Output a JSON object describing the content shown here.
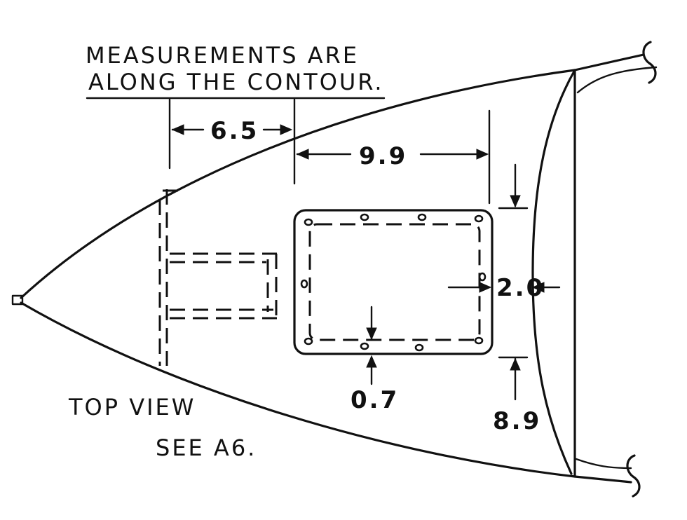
{
  "note": {
    "line1": "MEASUREMENTS ARE",
    "line2": "ALONG THE CONTOUR."
  },
  "dimensions": {
    "d1": "6.5",
    "d2": "9.9",
    "d3": "2.0",
    "d4": "0.7",
    "d5": "8.9"
  },
  "view_label": {
    "line1": "TOP VIEW",
    "line2": "SEE A6."
  },
  "colors": {
    "ink": "#111111",
    "paper": "#ffffff"
  }
}
